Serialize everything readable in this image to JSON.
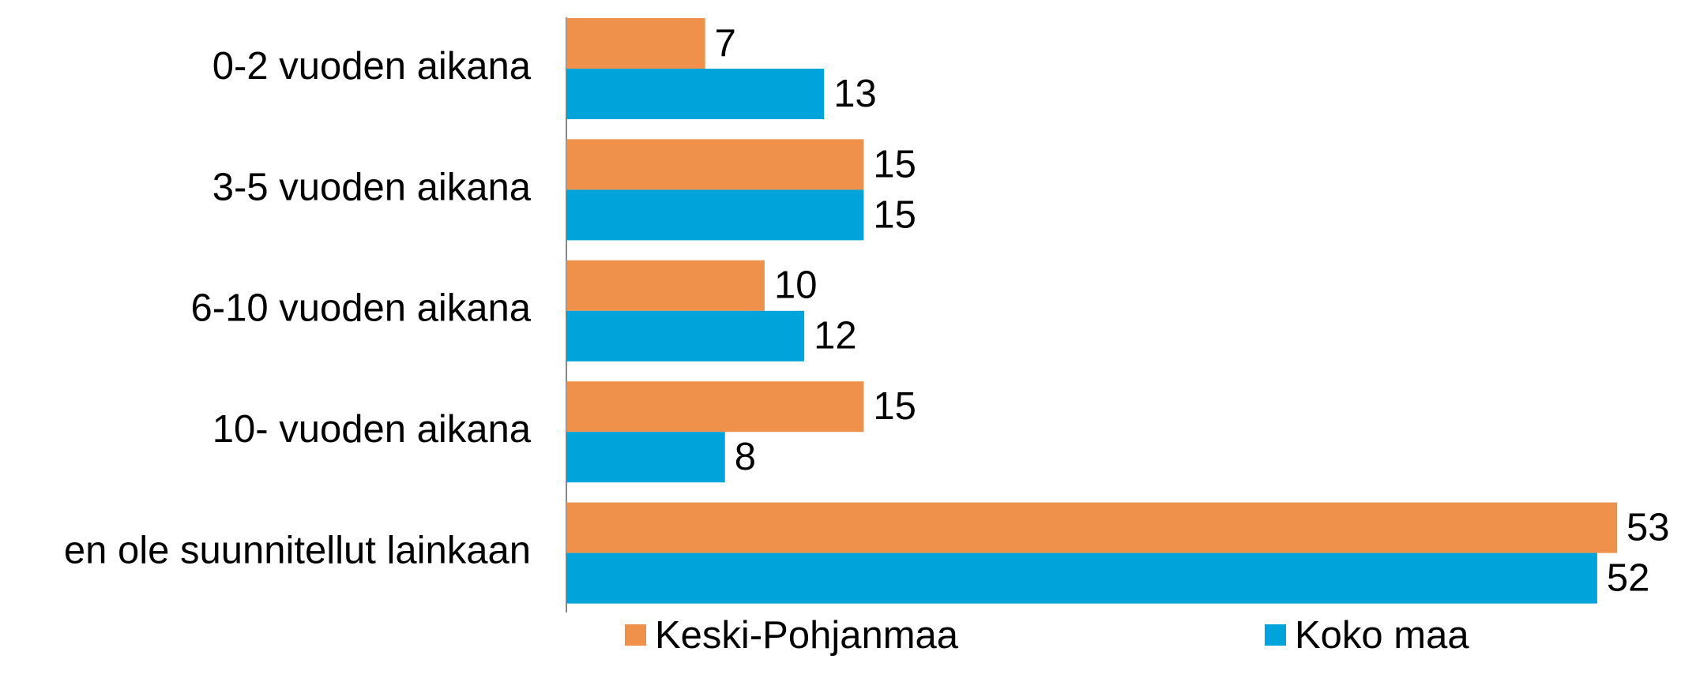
{
  "chart_data": {
    "type": "hbar",
    "categories": [
      "0-2 vuoden aikana",
      "3-5 vuoden aikana",
      "6-10 vuoden aikana",
      "10- vuoden aikana",
      "en ole suunnitellut  lainkaan"
    ],
    "series": [
      {
        "name": "Keski-Pohjanmaa",
        "color": "#f0914b",
        "values": [
          7,
          15,
          10,
          15,
          53
        ]
      },
      {
        "name": "Koko maa",
        "color": "#00a3da",
        "values": [
          13,
          15,
          12,
          8,
          52
        ]
      }
    ]
  }
}
